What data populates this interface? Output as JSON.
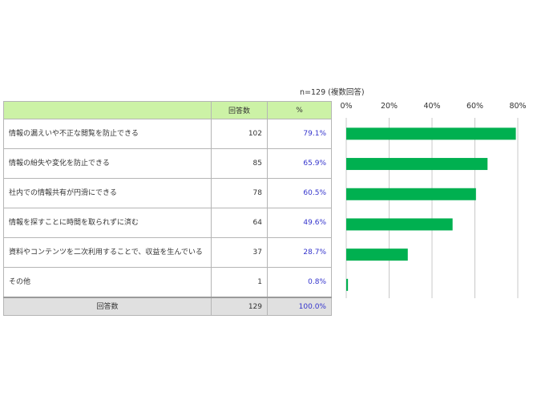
{
  "note": "n=129 (複数回答)",
  "table": {
    "headers": [
      "",
      "回答数",
      "%"
    ],
    "rows": [
      {
        "label": "情報の漏えいや不正な閲覧を防止できる",
        "count": "102",
        "pct": "79.1%"
      },
      {
        "label": "情報の紛失や変化を防止できる",
        "count": "85",
        "pct": "65.9%"
      },
      {
        "label": "社内での情報共有が円滑にできる",
        "count": "78",
        "pct": "60.5%"
      },
      {
        "label": "情報を探すことに時間を取られずに済む",
        "count": "64",
        "pct": "49.6%"
      },
      {
        "label": "資料やコンテンツを二次利用することで、収益を生んでいる",
        "count": "37",
        "pct": "28.7%"
      },
      {
        "label": "その他",
        "count": "1",
        "pct": "0.8%"
      }
    ],
    "total": {
      "label": "回答数",
      "count": "129",
      "pct": "100.0%"
    }
  },
  "chart_data": {
    "type": "bar",
    "orientation": "horizontal",
    "categories": [
      "情報の漏えいや不正な閲覧を防止できる",
      "情報の紛失や変化を防止できる",
      "社内での情報共有が円滑にできる",
      "情報を探すことに時間を取られずに済む",
      "資料やコンテンツを二次利用することで、収益を生んでいる",
      "その他"
    ],
    "values": [
      79.1,
      65.9,
      60.5,
      49.6,
      28.7,
      0.8
    ],
    "xlim": [
      0,
      80
    ],
    "ticks": [
      0,
      20,
      40,
      60,
      80
    ],
    "tick_labels": [
      "0%",
      "20%",
      "40%",
      "60%",
      "80%"
    ],
    "grid": true,
    "bar_color": "#00b050",
    "grid_color": "#c8c8c8"
  }
}
